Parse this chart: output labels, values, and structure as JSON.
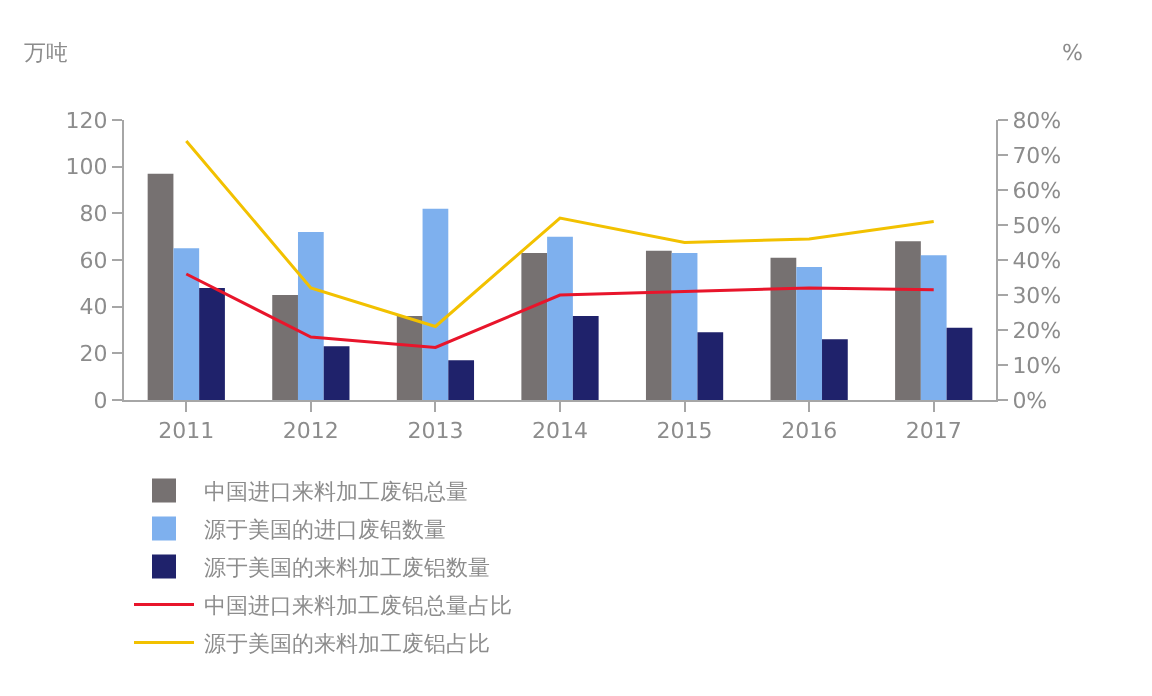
{
  "chart_data": {
    "type": "bar",
    "ylabel": "万吨",
    "y2label": "%",
    "categories": [
      "2011",
      "2012",
      "2013",
      "2014",
      "2015",
      "2016",
      "2017"
    ],
    "series": [
      {
        "name": "中国进口来料加工废铝总量",
        "color": "#767171",
        "values": [
          97,
          45,
          36,
          63,
          64,
          61,
          68
        ]
      },
      {
        "name": "源于美国的进口废铝数量",
        "color": "#7eb0ee",
        "values": [
          65,
          72,
          82,
          70,
          63,
          57,
          62
        ]
      },
      {
        "name": "源于美国的来料加工废铝数量",
        "color": "#1f226b",
        "values": [
          48,
          23,
          17,
          36,
          29,
          26,
          31
        ]
      },
      {
        "name": "中国进口来料加工废铝总量占比",
        "type": "line",
        "axis": "y2",
        "color": "#e8152b",
        "values": [
          36,
          18,
          15,
          30,
          31,
          32,
          31.5
        ]
      },
      {
        "name": "源于美国的来料加工废铝占比",
        "type": "line",
        "axis": "y2",
        "color": "#f2c100",
        "values": [
          74,
          32,
          21,
          52,
          45,
          46,
          51
        ]
      }
    ],
    "ylim": [
      0,
      120
    ],
    "yticks": [
      0,
      20,
      40,
      60,
      80,
      100,
      120
    ],
    "y2lim": [
      0,
      80
    ],
    "y2ticks": [
      {
        "value": 0,
        "label": "0%"
      },
      {
        "value": 10,
        "label": "10%"
      },
      {
        "value": 20,
        "label": "20%"
      },
      {
        "value": 30,
        "label": "30%"
      },
      {
        "value": 40,
        "label": "40%"
      },
      {
        "value": 50,
        "label": "50%"
      },
      {
        "value": 60,
        "label": "60%"
      },
      {
        "value": 70,
        "label": "70%"
      },
      {
        "value": 80,
        "label": "80%"
      }
    ],
    "grid": false,
    "legend": "bottom",
    "marker": "none"
  }
}
